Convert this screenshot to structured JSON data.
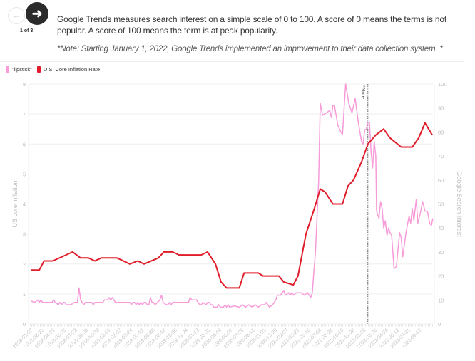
{
  "nav": {
    "prev_icon": "arrow-left-icon",
    "next_icon": "arrow-right-icon",
    "pager": "1 of 3"
  },
  "description": "Google Trends measures search interest on a simple scale of 0 to 100. A score of 0 means the terms is not popular. A score of 100 means the term is at peak popularity.",
  "note": "*Note: Starting January 1, 2022, Google Trends implemented an improvement to their data collection system. *",
  "colors": {
    "lipstick": "#f79bd9",
    "inflation": "#e11d2a"
  },
  "chart_data": {
    "type": "line",
    "x_unit": "weeks since 2018-01-07",
    "xlim": [
      0,
      253
    ],
    "x_tick_labels": [
      "2018-01-07",
      "2018-02-25",
      "2018-04-15",
      "2018-06-03",
      "2018-07-22",
      "2018-09-09",
      "2018-10-28",
      "2018-12-16",
      "2019-02-03",
      "2019-03-24",
      "2019-05-12",
      "2019-06-30",
      "2019-08-18",
      "2019-10-06",
      "2019-11-24",
      "2020-01-12",
      "2020-03-01",
      "2020-04-19",
      "2020-06-07",
      "2020-07-26",
      "2020-09-13",
      "2020-11-01",
      "2020-12-20",
      "2021-02-07",
      "2021-03-28",
      "2021-05-16",
      "2021-07-04",
      "2021-08-22",
      "2021-10-10",
      "2021-11-28",
      "2022-01-16",
      "2022-03-06",
      "2022-04-24",
      "2022-06-12",
      "2022-07-31",
      "2022-09-18"
    ],
    "x_tick_step_weeks": 7,
    "y_left": {
      "label": "US core inflation",
      "range": [
        0,
        8
      ],
      "ticks": [
        "0",
        "1",
        "2",
        "3",
        "4",
        "5",
        "6",
        "7",
        "8"
      ]
    },
    "y_right": {
      "label": "Google Search Interest",
      "range": [
        0,
        100
      ],
      "ticks": [
        "0",
        "10",
        "20",
        "30",
        "40",
        "50",
        "60",
        "70",
        "80",
        "90",
        "100"
      ]
    },
    "annotation": {
      "label": "*Note",
      "x": 212
    },
    "legend": [
      "\"lipstick\"",
      "U.S. Core Inflation Rate"
    ],
    "legend_position": "top-left",
    "series": [
      {
        "name": "\"lipstick\"",
        "axis": "right",
        "points": [
          [
            0,
            9.5
          ],
          [
            2,
            9
          ],
          [
            4,
            10
          ],
          [
            5,
            9
          ],
          [
            6,
            10
          ],
          [
            7,
            9
          ],
          [
            13,
            9
          ],
          [
            14,
            10
          ],
          [
            15,
            9
          ],
          [
            17,
            8
          ],
          [
            18,
            9
          ],
          [
            19,
            8
          ],
          [
            20,
            9
          ],
          [
            21,
            9
          ],
          [
            22,
            8
          ],
          [
            25,
            8
          ],
          [
            27,
            9
          ],
          [
            29,
            9
          ],
          [
            30,
            15
          ],
          [
            31,
            10
          ],
          [
            33,
            8
          ],
          [
            34,
            9
          ],
          [
            38,
            9
          ],
          [
            39,
            8
          ],
          [
            40,
            9
          ],
          [
            45,
            9
          ],
          [
            46,
            10
          ],
          [
            48,
            10
          ],
          [
            49,
            11
          ],
          [
            50,
            10
          ],
          [
            51,
            11
          ],
          [
            53,
            9
          ],
          [
            62,
            9
          ],
          [
            63,
            8
          ],
          [
            64,
            9
          ],
          [
            65,
            9
          ],
          [
            66,
            8
          ],
          [
            67,
            9
          ],
          [
            68,
            8
          ],
          [
            69,
            9
          ],
          [
            70,
            8
          ],
          [
            71,
            9
          ],
          [
            72,
            9
          ],
          [
            73,
            8
          ],
          [
            74,
            8
          ],
          [
            75,
            11
          ],
          [
            76,
            9
          ],
          [
            77,
            9
          ],
          [
            78,
            8
          ],
          [
            81,
            10
          ],
          [
            82,
            12
          ],
          [
            83,
            9
          ],
          [
            85,
            8
          ],
          [
            86,
            8
          ],
          [
            87,
            9
          ],
          [
            88,
            8
          ],
          [
            89,
            9
          ],
          [
            99,
            9
          ],
          [
            100,
            11
          ],
          [
            101,
            10
          ],
          [
            104,
            10
          ],
          [
            106,
            8
          ],
          [
            107,
            8
          ],
          [
            108,
            9
          ],
          [
            110,
            8
          ],
          [
            111,
            9
          ],
          [
            112,
            9
          ],
          [
            113,
            8
          ],
          [
            114,
            8
          ],
          [
            115,
            7
          ],
          [
            117,
            7
          ],
          [
            118,
            8
          ],
          [
            119,
            7
          ],
          [
            121,
            7
          ],
          [
            122,
            8
          ],
          [
            123,
            7
          ],
          [
            124,
            8
          ],
          [
            125,
            7
          ],
          [
            128,
            7.5
          ],
          [
            131,
            7
          ],
          [
            133,
            8
          ],
          [
            135,
            7
          ],
          [
            137,
            8
          ],
          [
            139,
            7
          ],
          [
            141,
            8
          ],
          [
            143,
            7
          ],
          [
            145,
            8
          ],
          [
            147,
            8
          ],
          [
            148,
            9
          ],
          [
            150,
            7
          ],
          [
            152,
            8
          ],
          [
            153,
            9
          ],
          [
            154,
            10
          ],
          [
            155,
            12
          ],
          [
            157,
            12
          ],
          [
            159,
            14
          ],
          [
            160,
            12
          ],
          [
            162,
            13
          ],
          [
            163,
            12
          ],
          [
            164,
            13
          ],
          [
            165,
            12
          ],
          [
            167,
            13
          ],
          [
            170,
            13
          ],
          [
            172,
            12
          ],
          [
            174,
            13
          ],
          [
            175,
            12
          ],
          [
            176,
            11
          ],
          [
            177,
            13
          ],
          [
            178,
            22
          ],
          [
            179,
            30
          ],
          [
            181,
            60
          ],
          [
            182,
            92
          ],
          [
            183.5,
            87
          ],
          [
            186,
            88
          ],
          [
            188,
            89
          ],
          [
            189,
            86
          ],
          [
            190,
            91
          ],
          [
            191,
            91
          ],
          [
            193,
            83
          ],
          [
            195,
            80
          ],
          [
            196,
            79
          ],
          [
            198,
            100
          ],
          [
            200,
            92
          ],
          [
            202,
            88
          ],
          [
            204,
            94
          ],
          [
            206,
            84
          ],
          [
            208,
            76
          ],
          [
            209,
            75
          ],
          [
            210,
            81
          ],
          [
            211,
            81
          ],
          [
            212,
            84
          ],
          [
            213,
            84
          ],
          [
            214,
            72
          ],
          [
            215,
            65
          ],
          [
            216,
            76
          ],
          [
            217,
            70
          ],
          [
            217.5,
            47
          ],
          [
            218,
            46
          ],
          [
            219,
            44
          ],
          [
            220,
            51
          ],
          [
            221,
            48
          ],
          [
            222,
            40
          ],
          [
            223,
            43
          ],
          [
            224,
            37
          ],
          [
            225,
            40
          ],
          [
            226,
            38
          ],
          [
            227,
            37
          ],
          [
            228.5,
            23
          ],
          [
            230,
            24
          ],
          [
            232,
            38
          ],
          [
            233,
            36
          ],
          [
            234,
            28
          ],
          [
            236,
            38
          ],
          [
            238,
            45
          ],
          [
            239,
            42
          ],
          [
            240,
            48
          ],
          [
            241,
            43
          ],
          [
            242.5,
            52
          ],
          [
            243.5,
            42
          ],
          [
            245,
            46
          ],
          [
            246.5,
            51
          ],
          [
            248,
            47
          ],
          [
            249.5,
            47
          ],
          [
            251,
            42
          ],
          [
            252,
            41
          ],
          [
            253,
            44
          ]
        ]
      },
      {
        "name": "U.S. Core Inflation Rate",
        "axis": "left",
        "points": [
          [
            0,
            1.8
          ],
          [
            5,
            1.8
          ],
          [
            8,
            2.1
          ],
          [
            13.5,
            2.1
          ],
          [
            26,
            2.4
          ],
          [
            31,
            2.2
          ],
          [
            36,
            2.2
          ],
          [
            40,
            2.1
          ],
          [
            44,
            2.2
          ],
          [
            54,
            2.2
          ],
          [
            62,
            2.0
          ],
          [
            67,
            2.1
          ],
          [
            71,
            2.0
          ],
          [
            80,
            2.2
          ],
          [
            83.5,
            2.4
          ],
          [
            89,
            2.4
          ],
          [
            93,
            2.3
          ],
          [
            107,
            2.3
          ],
          [
            111,
            2.4
          ],
          [
            116,
            2.0
          ],
          [
            119.5,
            1.4
          ],
          [
            123,
            1.2
          ],
          [
            131,
            1.2
          ],
          [
            134,
            1.7
          ],
          [
            143,
            1.7
          ],
          [
            146,
            1.6
          ],
          [
            156,
            1.6
          ],
          [
            159,
            1.4
          ],
          [
            165,
            1.3
          ],
          [
            168,
            1.6
          ],
          [
            173,
            3.0
          ],
          [
            178,
            3.8
          ],
          [
            182,
            4.5
          ],
          [
            185,
            4.4
          ],
          [
            190,
            4.0
          ],
          [
            196,
            4.0
          ],
          [
            199.5,
            4.6
          ],
          [
            203,
            4.8
          ],
          [
            208,
            5.4
          ],
          [
            212,
            6.0
          ],
          [
            217,
            6.3
          ],
          [
            222,
            6.5
          ],
          [
            226,
            6.2
          ],
          [
            233,
            5.9
          ],
          [
            240,
            5.9
          ],
          [
            244,
            6.2
          ],
          [
            248,
            6.7
          ],
          [
            252.6,
            6.3
          ]
        ]
      }
    ]
  }
}
